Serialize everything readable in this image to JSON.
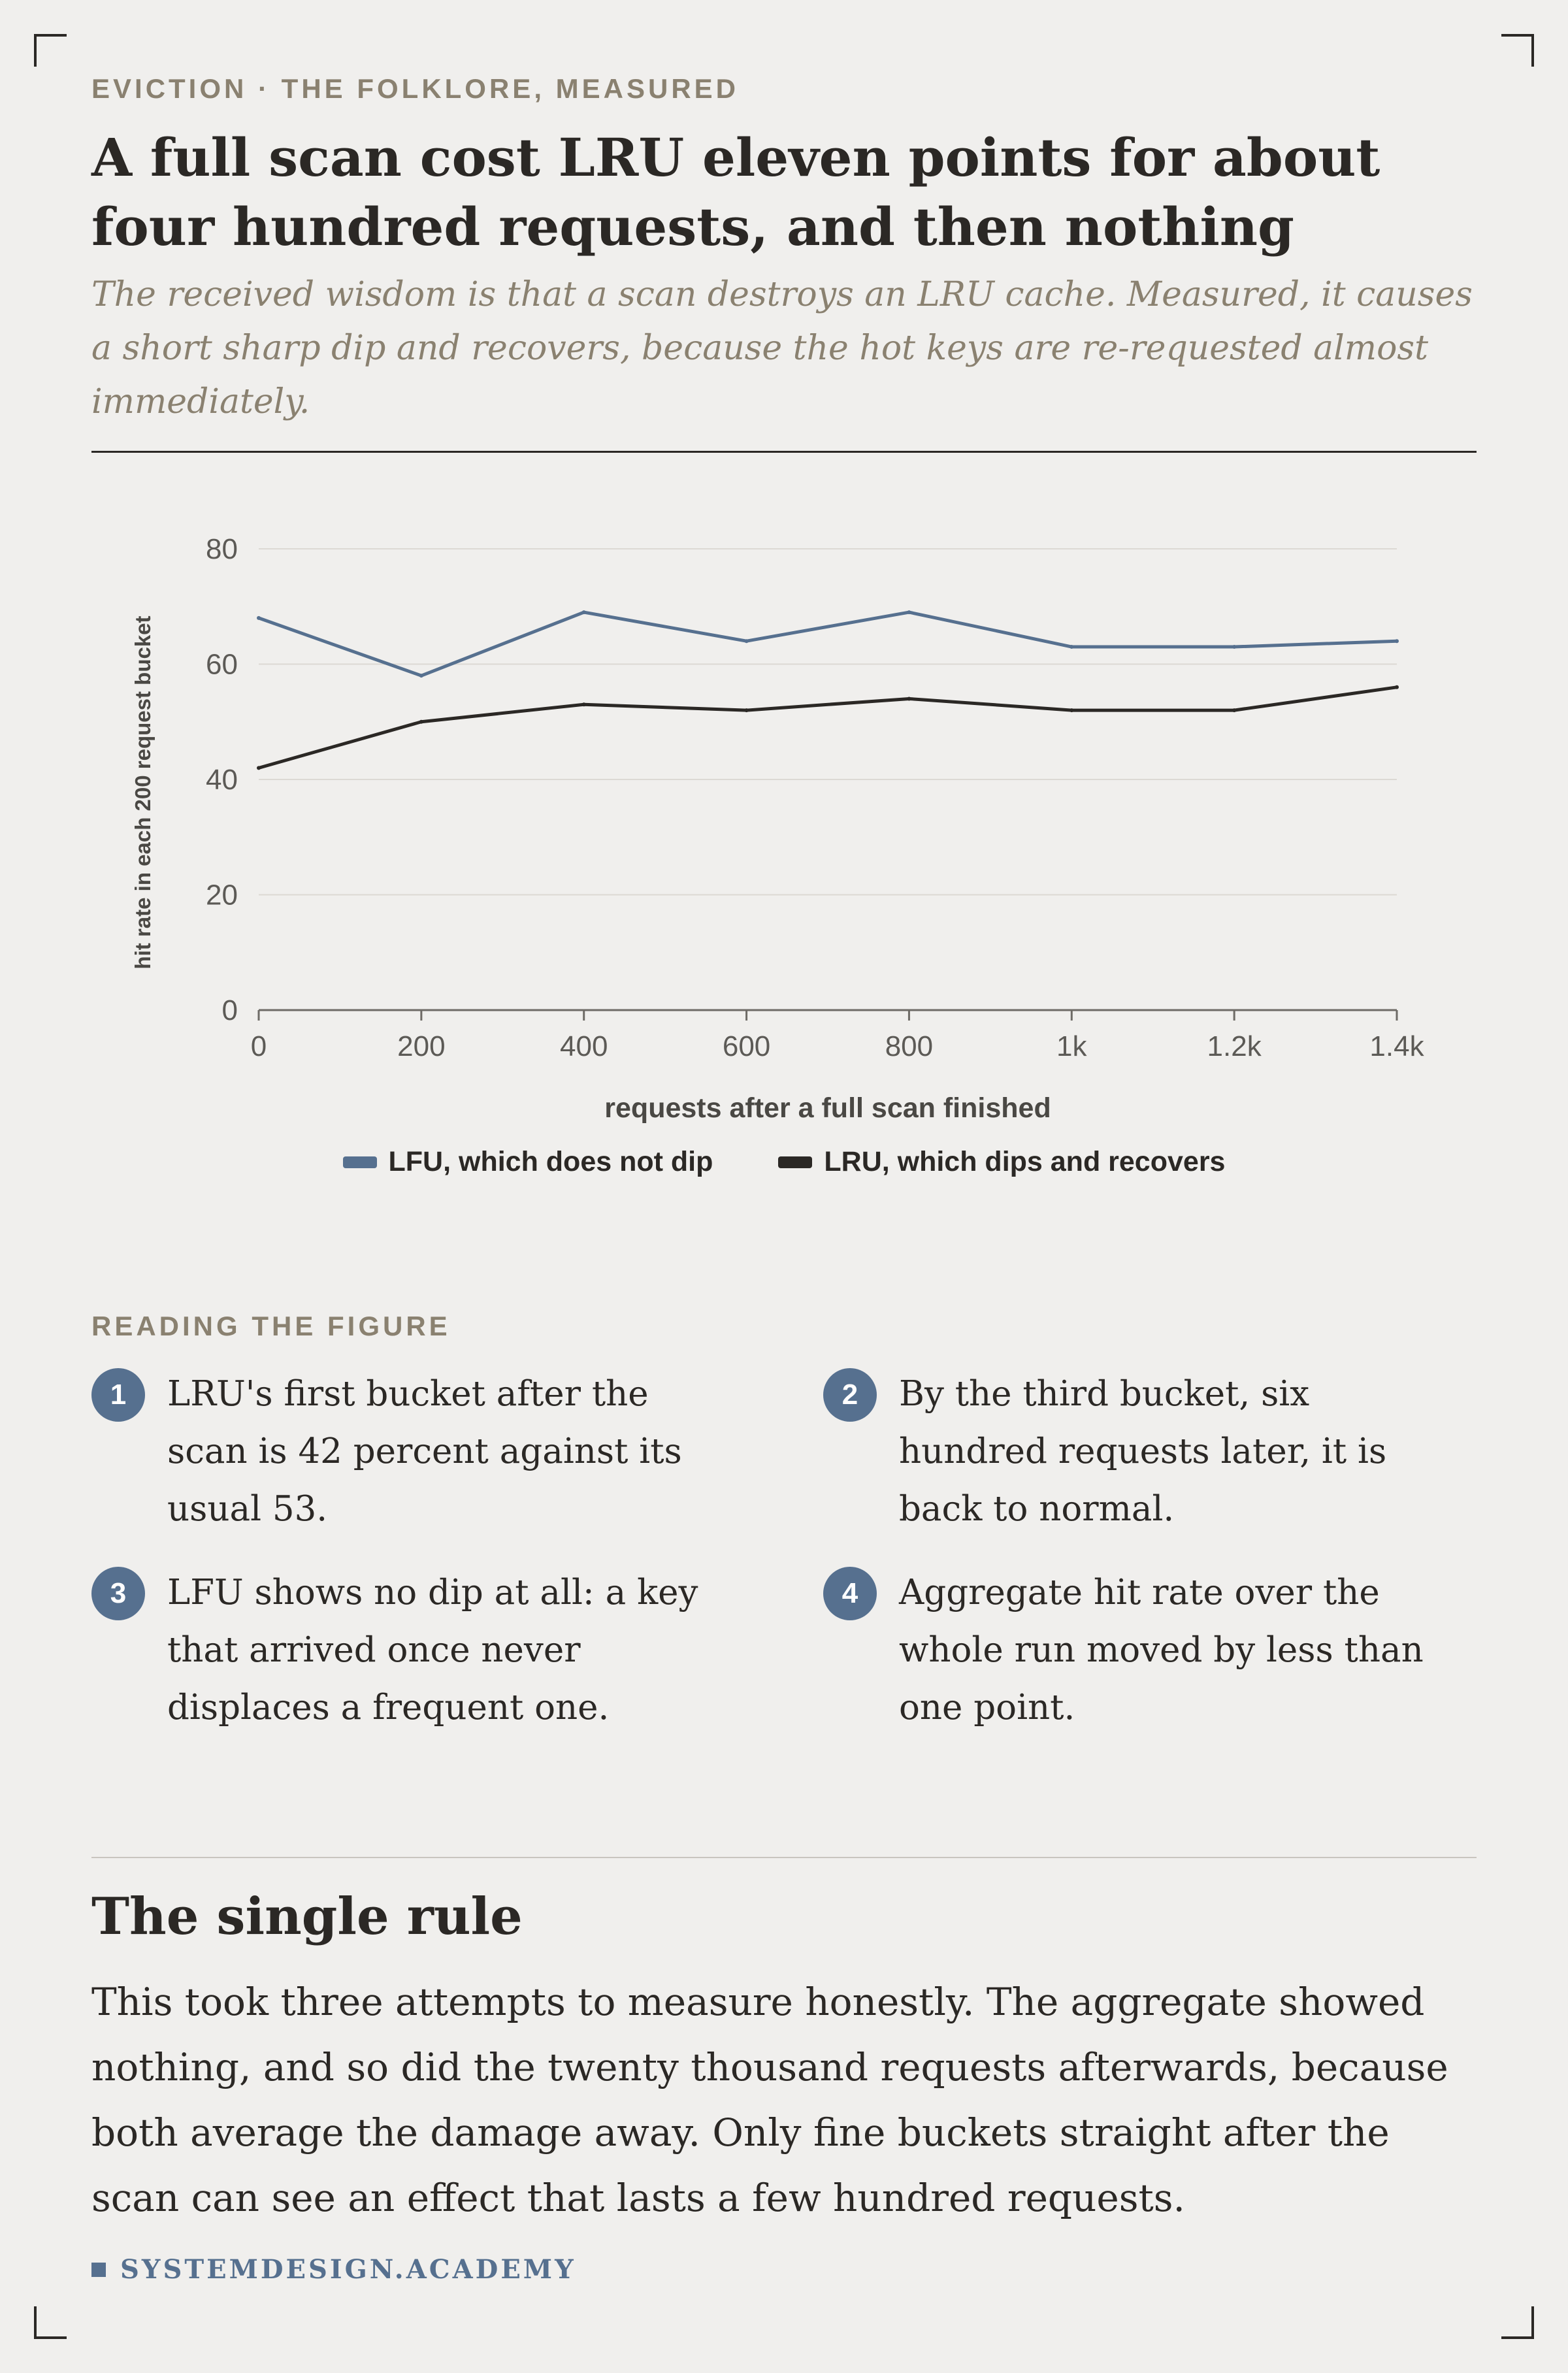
{
  "header": {
    "kicker": "EVICTION · THE FOLKLORE, MEASURED",
    "title": "A full scan cost LRU eleven points for about four hundred requests, and then nothing",
    "subtitle": "The received wisdom is that a scan destroys an LRU cache. Measured, it causes a short sharp dip and recovers, because the hot keys are re-requested almost immediately."
  },
  "chart_data": {
    "type": "line",
    "x": [
      0,
      200,
      400,
      600,
      800,
      1000,
      1200,
      1400
    ],
    "x_tick_labels": [
      "0",
      "200",
      "400",
      "600",
      "800",
      "1k",
      "1.2k",
      "1.4k"
    ],
    "y_ticks": [
      0,
      20,
      40,
      60,
      80
    ],
    "xlim": [
      0,
      1400
    ],
    "ylim": [
      0,
      80
    ],
    "xlabel": "requests after a full scan finished",
    "ylabel": "hit rate in each 200 request bucket",
    "grid": "horizontal",
    "legend_position": "bottom-center",
    "series": [
      {
        "name": "LFU, which does not dip",
        "color": "#56708f",
        "values": [
          68,
          58,
          69,
          64,
          69,
          63,
          63,
          64
        ]
      },
      {
        "name": "LRU, which dips and recovers",
        "color": "#2b2825",
        "values": [
          42,
          50,
          53,
          52,
          54,
          52,
          52,
          56
        ]
      }
    ]
  },
  "reading": {
    "heading": "READING THE FIGURE",
    "notes": [
      {
        "num": "1",
        "text": "LRU's first bucket after the scan is 42 percent against its usual 53."
      },
      {
        "num": "2",
        "text": "By the third bucket, six hundred requests later, it is back to normal."
      },
      {
        "num": "3",
        "text": "LFU shows no dip at all: a key that arrived once never displaces a frequent one."
      },
      {
        "num": "4",
        "text": "Aggregate hit rate over the whole run moved by less than one point."
      }
    ]
  },
  "rule": {
    "title": "The single rule",
    "body": "This took three attempts to measure honestly. The aggregate showed nothing, and so did the twenty thousand requests afterwards, because both average the damage away. Only fine buckets straight after the scan can see an effect that lasts a few hundred requests."
  },
  "footer": {
    "brand": "SYSTEMDESIGN.ACADEMY"
  }
}
